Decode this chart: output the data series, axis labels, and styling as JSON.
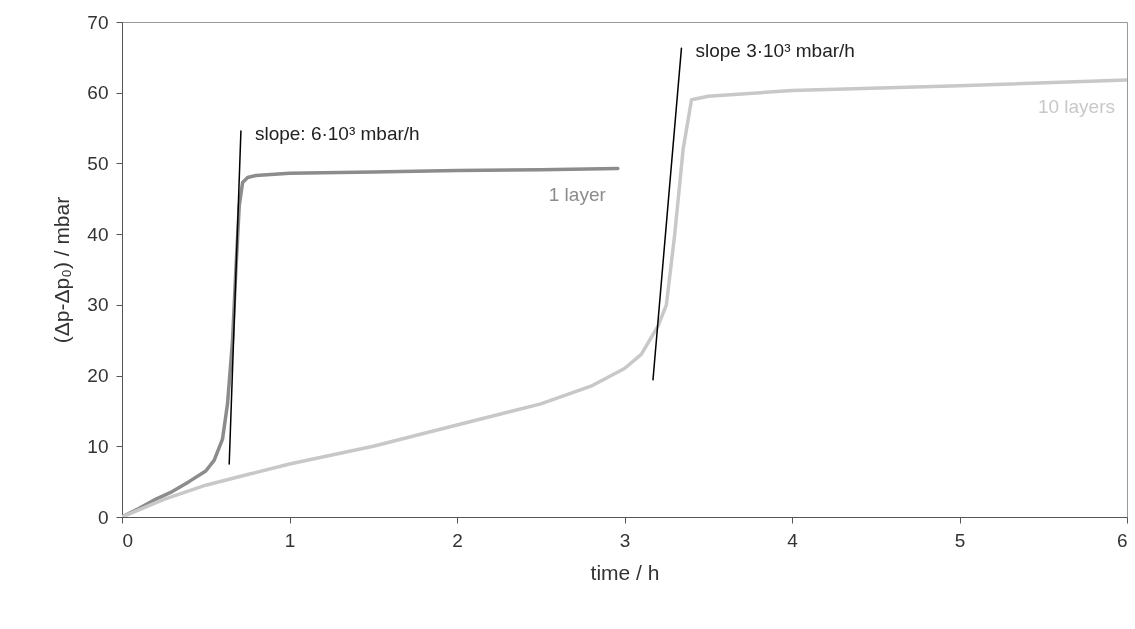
{
  "chart_data": {
    "type": "line",
    "xlabel": "time / h",
    "ylabel": "(Δp-Δp₀) / mbar",
    "xlim": [
      0,
      6
    ],
    "xticks": [
      0,
      1,
      2,
      3,
      4,
      5,
      6
    ],
    "ylim": [
      0,
      70
    ],
    "yticks": [
      0,
      10,
      20,
      30,
      40,
      50,
      60,
      70
    ],
    "grid": false,
    "series": [
      {
        "name": "1 layer",
        "color": "#8c8c8c",
        "x": [
          0,
          0.1,
          0.2,
          0.3,
          0.4,
          0.5,
          0.55,
          0.6,
          0.63,
          0.66,
          0.68,
          0.7,
          0.72,
          0.75,
          0.8,
          1,
          1.5,
          2,
          2.5,
          2.96
        ],
        "values": [
          0,
          1.2,
          2.5,
          3.6,
          5,
          6.5,
          8,
          11,
          16,
          25,
          35,
          44,
          47.3,
          48,
          48.3,
          48.6,
          48.8,
          49,
          49.1,
          49.3
        ]
      },
      {
        "name": "10 layers",
        "color": "#c8c8c8",
        "x": [
          0,
          0.25,
          0.5,
          0.75,
          1,
          1.5,
          2,
          2.5,
          2.8,
          3,
          3.1,
          3.2,
          3.25,
          3.3,
          3.35,
          3.4,
          3.5,
          4,
          5,
          6
        ],
        "values": [
          0,
          2.5,
          4.5,
          6,
          7.5,
          10,
          13,
          16,
          18.5,
          21,
          23,
          27,
          30,
          40,
          52,
          59,
          59.5,
          60.3,
          61,
          61.8
        ]
      },
      {
        "type": "line",
        "color": "#000000",
        "x": [
          0.64,
          0.71
        ],
        "values": [
          7.5,
          54.6
        ]
      },
      {
        "type": "line",
        "color": "#000000",
        "x": [
          3.17,
          3.34
        ],
        "values": [
          19.4,
          66.3
        ]
      }
    ],
    "annotations": [
      "slope: 6·10³ mbar/h",
      "slope 3·10³ mbar/h"
    ]
  }
}
